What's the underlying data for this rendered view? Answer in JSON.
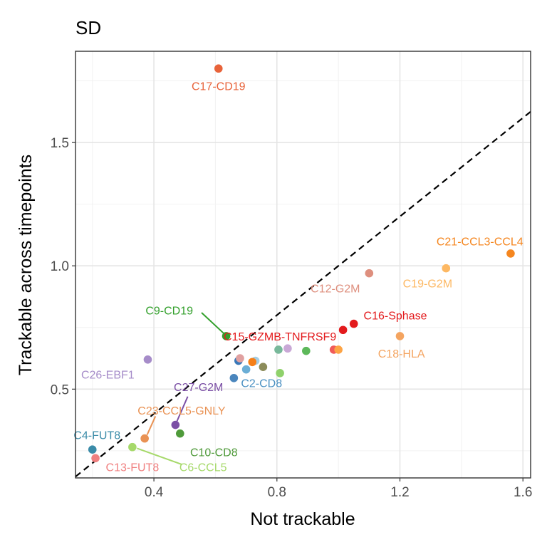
{
  "chart_data": {
    "type": "scatter",
    "title": "SD",
    "xlabel": "Not trackable",
    "ylabel": "Trackable across timepoints",
    "xlim": [
      0.145,
      1.625
    ],
    "ylim": [
      0.14,
      1.87
    ],
    "x_ticks": [
      0.4,
      0.8,
      1.2,
      1.6
    ],
    "x_tick_labels": [
      "0.4",
      "0.8",
      "1.2",
      "1.6"
    ],
    "y_ticks": [
      0.5,
      1.0,
      1.5
    ],
    "y_tick_labels": [
      "0.5",
      "1.0",
      "1.5"
    ],
    "grid": true,
    "reference_line": {
      "type": "identity",
      "style": "dashed",
      "color": "#000000"
    },
    "points": [
      {
        "x": 0.61,
        "y": 1.8,
        "color": "#E8633A",
        "label": "C17-CD19",
        "label_x": 0.61,
        "label_y": 1.73,
        "label_color": "#E8633A"
      },
      {
        "x": 1.56,
        "y": 1.05,
        "color": "#F5861F",
        "label": "C21-CCL3-CCL4",
        "label_x": 1.46,
        "label_y": 1.1,
        "label_color": "#F5861F"
      },
      {
        "x": 1.35,
        "y": 0.99,
        "color": "#FDB863",
        "label": "C19-G2M",
        "label_x": 1.29,
        "label_y": 0.93,
        "label_color": "#FDB863"
      },
      {
        "x": 1.1,
        "y": 0.97,
        "color": "#DE8F7E",
        "label": "C12-G2M",
        "label_x": 0.99,
        "label_y": 0.91,
        "label_color": "#DE8F7E"
      },
      {
        "x": 1.05,
        "y": 0.765,
        "color": "#E31A1C",
        "label": "C16-Sphase",
        "label_x": 1.185,
        "label_y": 0.8,
        "label_color": "#E31A1C"
      },
      {
        "x": 1.015,
        "y": 0.74,
        "color": "#E31A1C",
        "label": "C15-GZMB-TNFRSF9",
        "label_x": 0.81,
        "label_y": 0.715,
        "label_color": "#E31A1C"
      },
      {
        "x": 1.2,
        "y": 0.715,
        "color": "#F4A460",
        "label": "C18-HLA",
        "label_x": 1.205,
        "label_y": 0.645,
        "label_color": "#F4A460"
      },
      {
        "x": 0.635,
        "y": 0.715,
        "color": "#33A02C",
        "label": "C9-CD19",
        "label_x": 0.45,
        "label_y": 0.82,
        "label_color": "#33A02C",
        "leader": [
          0.555,
          0.81,
          0.628,
          0.725
        ]
      },
      {
        "x": 0.38,
        "y": 0.62,
        "color": "#A68CC9",
        "label": "C26-EBF1",
        "label_x": 0.25,
        "label_y": 0.56,
        "label_color": "#A68CC9"
      },
      {
        "x": 0.675,
        "y": 0.615,
        "color": "#3A78B8",
        "label": "C2-CD8",
        "label_x": 0.75,
        "label_y": 0.525,
        "label_color": "#4A90C2"
      },
      {
        "x": 0.47,
        "y": 0.355,
        "color": "#7B4FA5",
        "label": "C27-G2M",
        "label_x": 0.545,
        "label_y": 0.51,
        "label_color": "#7B4FA5",
        "leader": [
          0.51,
          0.47,
          0.475,
          0.37
        ]
      },
      {
        "x": 0.37,
        "y": 0.3,
        "color": "#E99254",
        "label": "C23-CCL5-GNLY",
        "label_x": 0.49,
        "label_y": 0.415,
        "label_color": "#E99254",
        "leader": [
          0.405,
          0.39,
          0.378,
          0.315
        ]
      },
      {
        "x": 0.485,
        "y": 0.32,
        "color": "#4F9A3A",
        "label": "C10-CD8",
        "label_x": 0.595,
        "label_y": 0.245,
        "label_color": "#4F9A3A"
      },
      {
        "x": 0.2,
        "y": 0.255,
        "color": "#3A8BA8",
        "label": "C4-FUT8",
        "label_x": 0.215,
        "label_y": 0.315,
        "label_color": "#3A8BA8"
      },
      {
        "x": 0.21,
        "y": 0.22,
        "color": "#F08080",
        "label": "C13-FUT8",
        "label_x": 0.33,
        "label_y": 0.185,
        "label_color": "#F08080"
      },
      {
        "x": 0.33,
        "y": 0.265,
        "color": "#A6D96A",
        "label": "C6-CCL5",
        "label_x": 0.56,
        "label_y": 0.185,
        "label_color": "#A6D96A",
        "leader": [
          0.49,
          0.195,
          0.345,
          0.26
        ]
      },
      {
        "x": 0.66,
        "y": 0.545,
        "color": "#4A86BD"
      },
      {
        "x": 0.7,
        "y": 0.58,
        "color": "#6BAED6"
      },
      {
        "x": 0.73,
        "y": 0.615,
        "color": "#A6CEE3"
      },
      {
        "x": 0.68,
        "y": 0.625,
        "color": "#E0A0A0"
      },
      {
        "x": 0.72,
        "y": 0.61,
        "color": "#F57F17"
      },
      {
        "x": 0.755,
        "y": 0.59,
        "color": "#8C8C5A"
      },
      {
        "x": 0.81,
        "y": 0.565,
        "color": "#8FD16B"
      },
      {
        "x": 0.805,
        "y": 0.66,
        "color": "#78B89A"
      },
      {
        "x": 0.835,
        "y": 0.665,
        "color": "#C9A8D6"
      },
      {
        "x": 0.895,
        "y": 0.655,
        "color": "#5DB85A"
      },
      {
        "x": 0.985,
        "y": 0.66,
        "color": "#F05A5A"
      },
      {
        "x": 1.0,
        "y": 0.66,
        "color": "#FDA445"
      }
    ]
  }
}
